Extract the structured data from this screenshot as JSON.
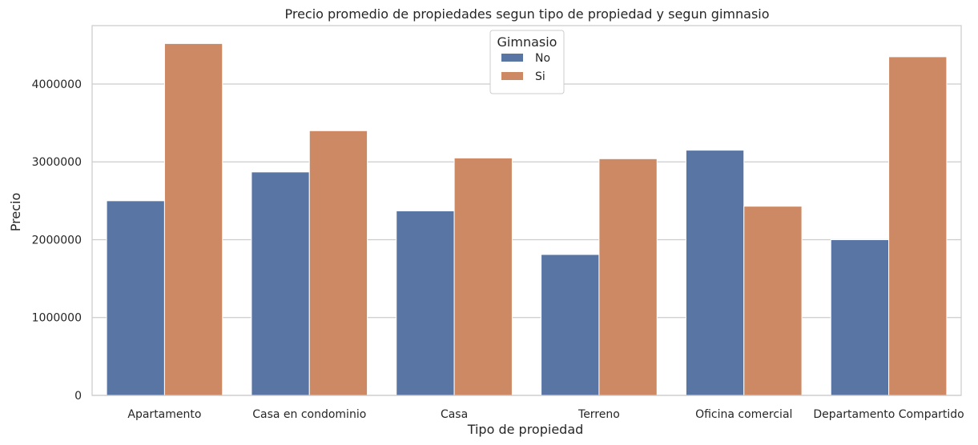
{
  "chart_data": {
    "type": "bar",
    "title": "Precio promedio de propiedades segun tipo de propiedad y segun gimnasio",
    "xlabel": "Tipo de propiedad",
    "ylabel": "Precio",
    "categories": [
      "Apartamento",
      "Casa en condominio",
      "Casa",
      "Terreno",
      "Oficina comercial",
      "Departamento Compartido"
    ],
    "series": [
      {
        "name": "No",
        "color": "#5875a4",
        "values": [
          2500000,
          2870000,
          2370000,
          1810000,
          3150000,
          2000000
        ]
      },
      {
        "name": "Si",
        "color": "#cc8963",
        "values": [
          4520000,
          3400000,
          3050000,
          3040000,
          2430000,
          4350000
        ]
      }
    ],
    "ylim": [
      0,
      4750000
    ],
    "yticks": [
      0,
      1000000,
      2000000,
      3000000,
      4000000
    ],
    "ytick_labels": [
      "0",
      "1000000",
      "2000000",
      "3000000",
      "4000000"
    ],
    "legend": {
      "title": "Gimnasio",
      "position": "top-center"
    },
    "grid": true
  }
}
